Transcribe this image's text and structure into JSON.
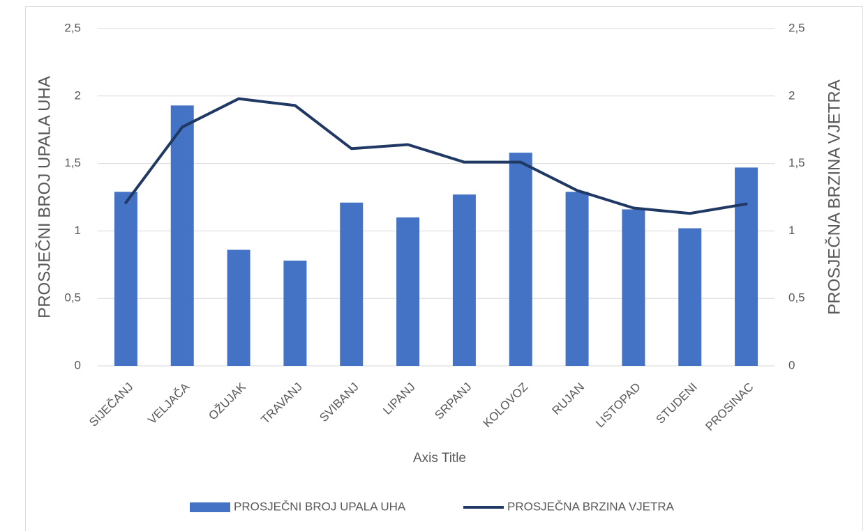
{
  "chart_data": {
    "type": "combo",
    "x_axis_title": "Axis Title",
    "y_axis_title": "PROSJEČNI BROJ UPALA UHA",
    "y2_axis_title": "PROSJEČNA BRZINA VJETRA",
    "categories": [
      "SIJEČANJ",
      "VELJAČA",
      "OŽUJAK",
      "TRAVANJ",
      "SVIBANJ",
      "LIPANJ",
      "SRPANJ",
      "KOLOVOZ",
      "RUJAN",
      "LISTOPAD",
      "STUDENI",
      "PROSINAC"
    ],
    "series": [
      {
        "name": "PROSJEČNI BROJ UPALA UHA",
        "type": "bar",
        "color": "#4472c4",
        "values": [
          1.29,
          1.93,
          0.86,
          0.78,
          1.21,
          1.1,
          1.27,
          1.58,
          1.29,
          1.16,
          1.02,
          1.47
        ]
      },
      {
        "name": "PROSJEČNA BRZINA VJETRA",
        "type": "line",
        "axis": "y2",
        "color": "#203864",
        "values": [
          1.21,
          1.77,
          1.98,
          1.93,
          1.61,
          1.64,
          1.51,
          1.51,
          1.3,
          1.17,
          1.13,
          1.2
        ]
      }
    ],
    "ylim": [
      0,
      2.5
    ],
    "yticks": [
      0,
      {
        "value": 0.5,
        "label": "0,5"
      },
      1,
      {
        "value": 1.5,
        "label": "1,5"
      },
      2,
      {
        "value": 2.5,
        "label": "2,5"
      }
    ],
    "y2lim": [
      0,
      2.5
    ],
    "y2ticks": [
      0,
      {
        "value": 0.5,
        "label": "0,5"
      },
      1,
      {
        "value": 1.5,
        "label": "1,5"
      },
      2,
      {
        "value": 2.5,
        "label": "2,5"
      }
    ],
    "grid": true,
    "legend": "bottom"
  }
}
